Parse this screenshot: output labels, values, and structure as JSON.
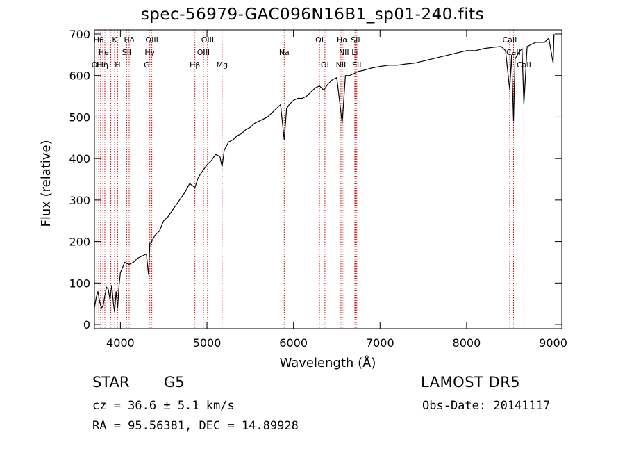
{
  "chart_data": {
    "type": "line",
    "title": "spec-56979-GAC096N16B1_sp01-240.fits",
    "xlabel": "Wavelength (Å)",
    "ylabel": "Flux (relative)",
    "xlim": [
      3700,
      9100
    ],
    "ylim": [
      -10,
      710
    ],
    "xticks": [
      4000,
      5000,
      6000,
      7000,
      8000,
      9000
    ],
    "yticks": [
      0,
      100,
      200,
      300,
      400,
      500,
      600,
      700
    ],
    "grid": false,
    "colors": {
      "spectrum": "#000000",
      "line_markers": "#cc0000"
    },
    "series": [
      {
        "x": [
          3700,
          3720,
          3740,
          3760,
          3780,
          3800,
          3820,
          3840,
          3860,
          3880,
          3900,
          3920,
          3933,
          3950,
          3968,
          3985,
          4000,
          4050,
          4101,
          4150,
          4200,
          4250,
          4300,
          4325,
          4340,
          4360,
          4400,
          4450,
          4500,
          4550,
          4600,
          4650,
          4700,
          4750,
          4800,
          4861,
          4900,
          4950,
          5000,
          5050,
          5100,
          5150,
          5175,
          5200,
          5250,
          5300,
          5350,
          5400,
          5450,
          5500,
          5550,
          5600,
          5650,
          5700,
          5750,
          5800,
          5850,
          5893,
          5920,
          5950,
          6000,
          6050,
          6100,
          6150,
          6200,
          6250,
          6300,
          6350,
          6400,
          6450,
          6500,
          6563,
          6600,
          6650,
          6700,
          6750,
          6800,
          6900,
          7000,
          7100,
          7200,
          7300,
          7400,
          7500,
          7600,
          7700,
          7800,
          7900,
          8000,
          8100,
          8200,
          8300,
          8400,
          8450,
          8498,
          8520,
          8542,
          8560,
          8600,
          8640,
          8662,
          8700,
          8800,
          8900,
          8950,
          9000,
          9010
        ],
        "y": [
          40,
          65,
          80,
          55,
          40,
          45,
          70,
          90,
          85,
          60,
          95,
          50,
          30,
          80,
          40,
          95,
          125,
          150,
          145,
          150,
          160,
          165,
          170,
          120,
          195,
          200,
          215,
          225,
          250,
          260,
          275,
          290,
          305,
          320,
          340,
          330,
          355,
          370,
          385,
          395,
          410,
          405,
          380,
          420,
          440,
          445,
          455,
          460,
          470,
          475,
          485,
          490,
          495,
          500,
          510,
          520,
          530,
          445,
          520,
          530,
          540,
          545,
          545,
          550,
          560,
          570,
          575,
          565,
          580,
          590,
          595,
          485,
          600,
          600,
          605,
          610,
          612,
          618,
          622,
          625,
          625,
          628,
          630,
          635,
          640,
          645,
          650,
          655,
          660,
          660,
          665,
          668,
          670,
          660,
          565,
          650,
          490,
          640,
          655,
          665,
          530,
          670,
          680,
          680,
          690,
          630,
          700
        ]
      }
    ],
    "line_markers": [
      {
        "x": 3727,
        "label": "OII",
        "row": 2
      },
      {
        "x": 3750,
        "label": "Hθ",
        "row": 0
      },
      {
        "x": 3771,
        "label": "Hι",
        "row": 2
      },
      {
        "x": 3798,
        "label": "Hη",
        "row": 2
      },
      {
        "x": 3820,
        "label": "HeI",
        "row": 1
      },
      {
        "x": 3889,
        "label": "",
        "row": 2
      },
      {
        "x": 3933,
        "label": "K",
        "row": 0
      },
      {
        "x": 3968,
        "label": "H",
        "row": 2
      },
      {
        "x": 4072,
        "label": "SII",
        "row": 1
      },
      {
        "x": 4101,
        "label": "Hδ",
        "row": 0
      },
      {
        "x": 4305,
        "label": "G",
        "row": 2
      },
      {
        "x": 4340,
        "label": "Hγ",
        "row": 1
      },
      {
        "x": 4363,
        "label": "OIII",
        "row": 0
      },
      {
        "x": 4861,
        "label": "Hβ",
        "row": 2
      },
      {
        "x": 4959,
        "label": "OIII",
        "row": 1
      },
      {
        "x": 5007,
        "label": "OIII",
        "row": 0
      },
      {
        "x": 5175,
        "label": "Mg",
        "row": 2
      },
      {
        "x": 5893,
        "label": "Na",
        "row": 1
      },
      {
        "x": 6300,
        "label": "OI",
        "row": 0
      },
      {
        "x": 6363,
        "label": "OI",
        "row": 2
      },
      {
        "x": 6548,
        "label": "NII",
        "row": 2
      },
      {
        "x": 6563,
        "label": "Hα",
        "row": 0
      },
      {
        "x": 6583,
        "label": "NII",
        "row": 1
      },
      {
        "x": 6708,
        "label": "Li",
        "row": 1
      },
      {
        "x": 6716,
        "label": "SII",
        "row": 0
      },
      {
        "x": 6731,
        "label": "SII",
        "row": 2
      },
      {
        "x": 8498,
        "label": "CaII",
        "row": 0
      },
      {
        "x": 8542,
        "label": "CaII",
        "row": 1
      },
      {
        "x": 8662,
        "label": "CaII",
        "row": 2
      }
    ]
  },
  "info": {
    "object_class": "STAR",
    "subclass": "G5",
    "survey": "LAMOST  DR5",
    "redshift": "cz = 36.6 ± 5.1 km/s",
    "obs_date": "Obs-Date: 20141117",
    "coords": "RA =  95.56381, DEC =  14.89928"
  }
}
